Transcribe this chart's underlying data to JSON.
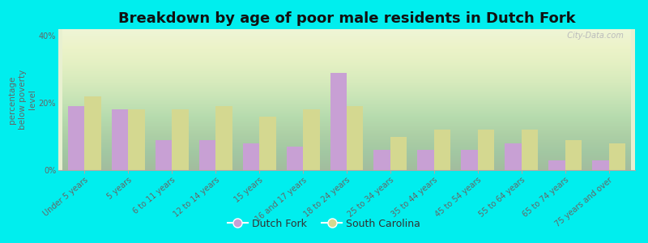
{
  "title": "Breakdown by age of poor male residents in Dutch Fork",
  "categories": [
    "Under 5 years",
    "5 years",
    "6 to 11 years",
    "12 to 14 years",
    "15 years",
    "16 and 17 years",
    "18 to 24 years",
    "25 to 34 years",
    "35 to 44 years",
    "45 to 54 years",
    "55 to 64 years",
    "65 to 74 years",
    "75 years and over"
  ],
  "dutch_fork": [
    19,
    18,
    9,
    9,
    8,
    7,
    29,
    6,
    6,
    6,
    8,
    3,
    3
  ],
  "south_carolina": [
    22,
    18,
    18,
    19,
    16,
    18,
    19,
    10,
    12,
    12,
    12,
    9,
    8
  ],
  "dutch_fork_color": "#c8a0d4",
  "south_carolina_color": "#d4d890",
  "background_color": "#00eeee",
  "ylabel": "percentage\nbelow poverty\nlevel",
  "ylim": [
    0,
    42
  ],
  "yticks": [
    0,
    20,
    40
  ],
  "ytick_labels": [
    "0%",
    "20%",
    "40%"
  ],
  "legend_dutch_fork": "Dutch Fork",
  "legend_south_carolina": "South Carolina",
  "title_fontsize": 13,
  "axis_label_fontsize": 7.5,
  "tick_fontsize": 7,
  "legend_fontsize": 9,
  "bar_width": 0.38
}
